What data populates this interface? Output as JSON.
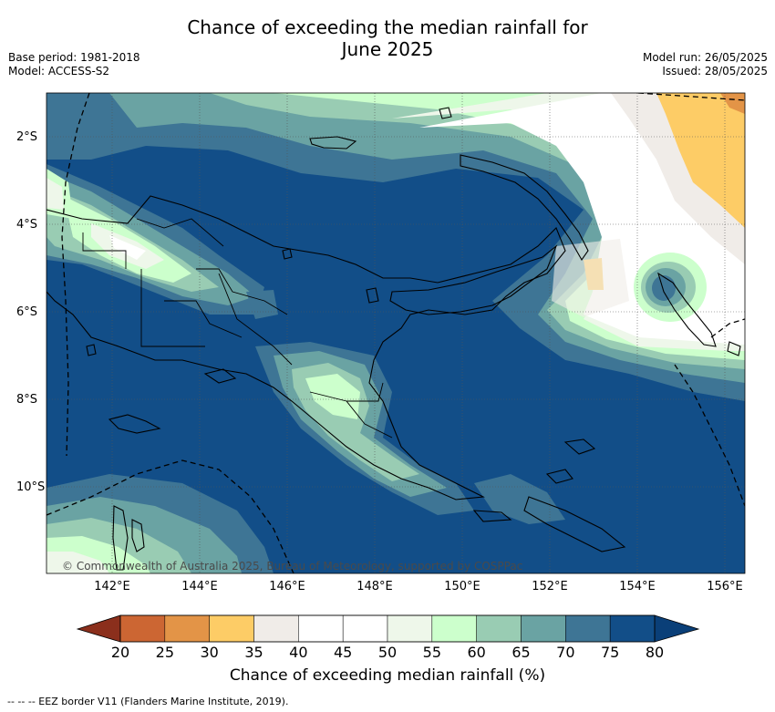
{
  "header": {
    "title_line1": "Chance of exceeding the median rainfall for",
    "title_line2": "June 2025",
    "base_period": "Base period: 1981-2018",
    "model": "Model: ACCESS-S2",
    "model_run": "Model run: 26/05/2025",
    "issued": "Issued: 28/05/2025"
  },
  "map": {
    "lon_labels": [
      "142°E",
      "144°E",
      "146°E",
      "148°E",
      "150°E",
      "152°E",
      "154°E",
      "156°E"
    ],
    "lat_labels": [
      "2°S",
      "4°S",
      "6°S",
      "8°S",
      "10°S"
    ],
    "copyright": "© Commonwealth of Australia 2025, Bureau of Meteorology, supported by COSPPac"
  },
  "colorbar": {
    "ticks": [
      "20",
      "25",
      "30",
      "35",
      "40",
      "45",
      "50",
      "55",
      "60",
      "65",
      "70",
      "75",
      "80"
    ],
    "colors": [
      "#ad4225",
      "#cc6633",
      "#e39447",
      "#fdcc66",
      "#f0ece8",
      "#ffffff",
      "#ffffff",
      "#eef7ea",
      "#ccffcc",
      "#99ccb3",
      "#6aa3a3",
      "#3e7595",
      "#124e88"
    ],
    "label": "Chance of exceeding median rainfall (%)"
  },
  "legend": {
    "eez": "-- -- -- EEZ border V11 (Flanders Marine Institute, 2019)."
  }
}
